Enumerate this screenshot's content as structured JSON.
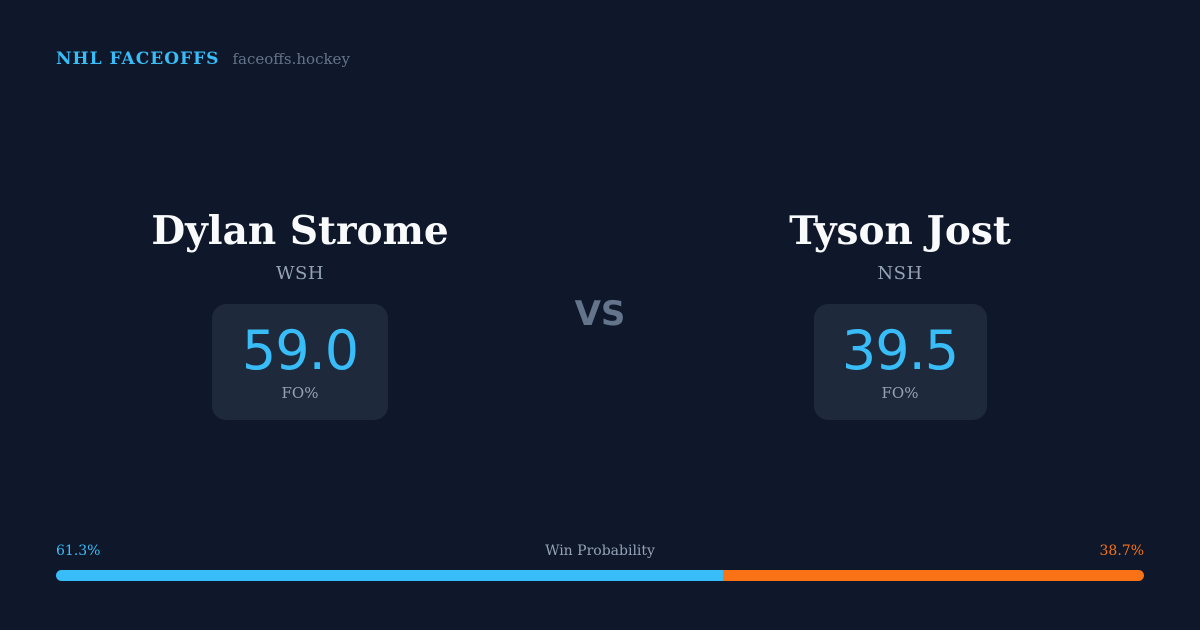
{
  "brand": {
    "name": "NHL FACEOFFS",
    "site": "faceoffs.hockey"
  },
  "players": [
    {
      "name": "Dylan Strome",
      "team": "WSH",
      "value": "59.0",
      "label": "FO%"
    },
    {
      "name": "Tyson Jost",
      "team": "NSH",
      "value": "39.5",
      "label": "FO%"
    }
  ],
  "vs": "VS",
  "win_probability": {
    "title": "Win Probability",
    "left": "61.3%",
    "right": "38.7%",
    "left_fraction": 0.613
  },
  "colors": {
    "background": "#0f172a",
    "card": "#1e293b",
    "accent": "#38bdf8",
    "opponent": "#f97316",
    "muted": "#94a3b8"
  }
}
